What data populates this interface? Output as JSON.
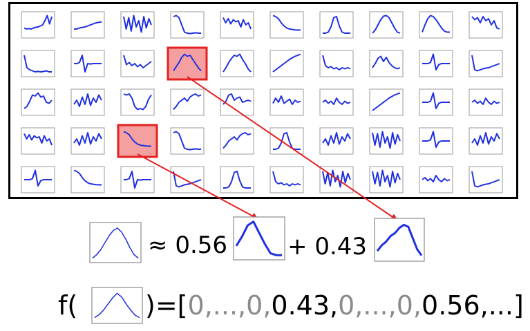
{
  "diagram": {
    "dictionary": {
      "rows": 5,
      "cols": 10,
      "highlighted": [
        {
          "row": 1,
          "col": 3,
          "weight_label": "0.43"
        },
        {
          "row": 3,
          "col": 2,
          "weight_label": "0.56"
        }
      ]
    },
    "equation": {
      "approx_symbol": "≈",
      "coef_a": "0.56",
      "plus_symbol": "+",
      "coef_b": "0.43"
    },
    "code": {
      "func_open": "f(",
      "close_eq": ")=[",
      "tokens": [
        {
          "text": "0",
          "grey": true
        },
        {
          "text": ",",
          "grey": true
        },
        {
          "text": "...",
          "grey": true
        },
        {
          "text": ",",
          "grey": true
        },
        {
          "text": "0",
          "grey": true
        },
        {
          "text": ",",
          "grey": true
        },
        {
          "text": "0.43",
          "grey": false
        },
        {
          "text": ",",
          "grey": false
        },
        {
          "text": "0",
          "grey": true
        },
        {
          "text": ",",
          "grey": true
        },
        {
          "text": "...",
          "grey": true
        },
        {
          "text": ",",
          "grey": true
        },
        {
          "text": "0",
          "grey": true
        },
        {
          "text": ",",
          "grey": true
        },
        {
          "text": "0.56",
          "grey": false
        },
        {
          "text": ",...]",
          "grey": false
        }
      ]
    },
    "colors": {
      "curve": "#1f2fe0",
      "highlight_fill": "#f4a0a0",
      "highlight_border": "#e52020",
      "arrow": "#e52020",
      "grey_text": "#8a8a8a"
    }
  }
}
